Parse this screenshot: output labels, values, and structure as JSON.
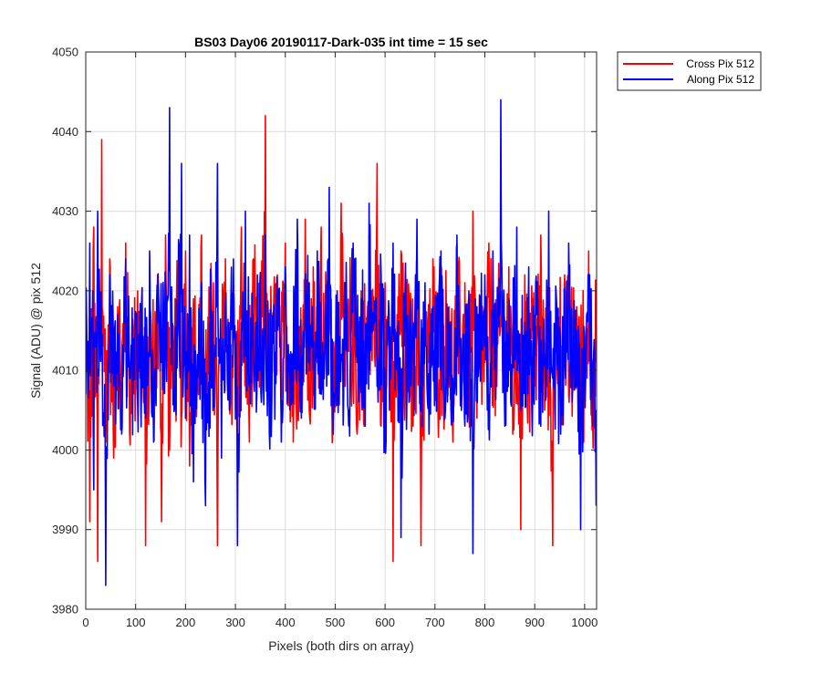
{
  "chart_data": {
    "type": "line",
    "title": "BS03 Day06 20190117-Dark-035 int time = 15 sec",
    "xlabel": "Pixels (both dirs on array)",
    "ylabel": "Signal (ADU) @ pix 512",
    "xlim": [
      0,
      1024
    ],
    "ylim": [
      3980,
      4050
    ],
    "xticks": [
      0,
      100,
      200,
      300,
      400,
      500,
      600,
      700,
      800,
      900,
      1000
    ],
    "yticks": [
      3980,
      3990,
      4000,
      4010,
      4020,
      4030,
      4040,
      4050
    ],
    "grid": true,
    "legend_position": "outside-top-right",
    "series": [
      {
        "name": "Cross Pix 512",
        "color": "#ff0000",
        "note": "approximately 1024 noisy samples; values listed are representative points read every ~8 pixels",
        "x": [
          0,
          8,
          16,
          24,
          32,
          40,
          48,
          56,
          64,
          72,
          80,
          88,
          96,
          104,
          112,
          120,
          128,
          136,
          144,
          152,
          160,
          168,
          176,
          184,
          192,
          200,
          208,
          216,
          224,
          232,
          240,
          248,
          256,
          264,
          272,
          280,
          288,
          296,
          304,
          312,
          320,
          328,
          336,
          344,
          352,
          360,
          368,
          376,
          384,
          392,
          400,
          408,
          416,
          424,
          432,
          440,
          448,
          456,
          464,
          472,
          480,
          488,
          496,
          504,
          512,
          520,
          528,
          536,
          544,
          552,
          560,
          568,
          576,
          584,
          592,
          600,
          608,
          616,
          624,
          632,
          640,
          648,
          656,
          664,
          672,
          680,
          688,
          696,
          704,
          712,
          720,
          728,
          736,
          744,
          752,
          760,
          768,
          776,
          784,
          792,
          800,
          808,
          816,
          824,
          832,
          840,
          848,
          856,
          864,
          872,
          880,
          888,
          896,
          904,
          912,
          920,
          928,
          936,
          944,
          952,
          960,
          968,
          976,
          984,
          992,
          1000,
          1008,
          1016,
          1023
        ],
        "values": [
          4013,
          3991,
          4028,
          3986,
          4039,
          4001,
          4024,
          3999,
          4018,
          4005,
          4026,
          4002,
          4011,
          4020,
          4008,
          3988,
          4015,
          4006,
          4022,
          3991,
          4027,
          4000,
          4012,
          4017,
          4004,
          4025,
          3998,
          4019,
          4008,
          4027,
          4003,
          4014,
          4021,
          3988,
          4010,
          4024,
          4006,
          4017,
          4002,
          4028,
          4012,
          4001,
          4024,
          4009,
          4019,
          4042,
          4007,
          4015,
          4022,
          4004,
          4026,
          4010,
          4001,
          4018,
          4013,
          4029,
          4005,
          4023,
          4011,
          4028,
          4014,
          4022,
          4004,
          4019,
          4031,
          4008,
          4016,
          4024,
          4002,
          4020,
          4010,
          4027,
          4016,
          4036,
          4003,
          4021,
          4012,
          3986,
          4017,
          4025,
          4008,
          4019,
          4003,
          4022,
          3988,
          4016,
          4011,
          4024,
          4005,
          4020,
          4013,
          4018,
          4001,
          4026,
          4012,
          4021,
          4007,
          4030,
          4004,
          4017,
          4011,
          4026,
          4014,
          4008,
          4020,
          4016,
          4023,
          4002,
          4013,
          3990,
          4022,
          4009,
          4019,
          4014,
          4027,
          4005,
          4011,
          3988,
          4018,
          4013,
          4022,
          4007,
          4011,
          4018,
          4006,
          4013,
          4025,
          4004,
          4011
        ]
      },
      {
        "name": "Along Pix 512",
        "color": "#0000ff",
        "note": "approximately 1024 noisy samples; values listed are representative points read every ~8 pixels",
        "x": [
          0,
          8,
          16,
          24,
          32,
          40,
          48,
          56,
          64,
          72,
          80,
          88,
          96,
          104,
          112,
          120,
          128,
          136,
          144,
          152,
          160,
          168,
          176,
          184,
          192,
          200,
          208,
          216,
          224,
          232,
          240,
          248,
          256,
          264,
          272,
          280,
          288,
          296,
          304,
          312,
          320,
          328,
          336,
          344,
          352,
          360,
          368,
          376,
          384,
          392,
          400,
          408,
          416,
          424,
          432,
          440,
          448,
          456,
          464,
          472,
          480,
          488,
          496,
          504,
          512,
          520,
          528,
          536,
          544,
          552,
          560,
          568,
          576,
          584,
          592,
          600,
          608,
          616,
          624,
          632,
          640,
          648,
          656,
          664,
          672,
          680,
          688,
          696,
          704,
          712,
          720,
          728,
          736,
          744,
          752,
          760,
          768,
          776,
          784,
          792,
          800,
          808,
          816,
          824,
          832,
          840,
          848,
          856,
          864,
          872,
          880,
          888,
          896,
          904,
          912,
          920,
          928,
          936,
          944,
          952,
          960,
          968,
          976,
          984,
          992,
          1000,
          1008,
          1016,
          1023
        ],
        "values": [
          4007,
          4026,
          3995,
          4030,
          4012,
          3983,
          4022,
          4008,
          4017,
          4002,
          4024,
          4009,
          4014,
          4006,
          4019,
          4004,
          4025,
          4001,
          4016,
          4011,
          4020,
          4043,
          4008,
          4015,
          4036,
          4004,
          4027,
          3996,
          4012,
          4021,
          3993,
          4016,
          4010,
          4036,
          3999,
          4018,
          4005,
          4024,
          3988,
          4016,
          4030,
          4008,
          4012,
          4022,
          4006,
          4027,
          4002,
          4014,
          4019,
          4001,
          4023,
          4012,
          4009,
          4029,
          4004,
          4017,
          4021,
          4010,
          4025,
          4007,
          4015,
          4033,
          4002,
          4020,
          4012,
          4016,
          4005,
          4026,
          4011,
          4019,
          4003,
          4031,
          4015,
          4008,
          4022,
          4001,
          4017,
          4026,
          4013,
          3989,
          4020,
          4006,
          4016,
          4029,
          4010,
          4021,
          4002,
          4018,
          4012,
          4025,
          4004,
          4016,
          4009,
          4027,
          4014,
          4003,
          4020,
          3987,
          4018,
          4011,
          4022,
          4007,
          4025,
          4013,
          4044,
          4003,
          4019,
          4011,
          4028,
          4005,
          4016,
          4023,
          4008,
          4017,
          4003,
          4012,
          4030,
          4009,
          4018,
          4002,
          4014,
          4026,
          4008,
          4015,
          3990,
          4011,
          4019,
          4003,
          3993
        ]
      }
    ]
  }
}
